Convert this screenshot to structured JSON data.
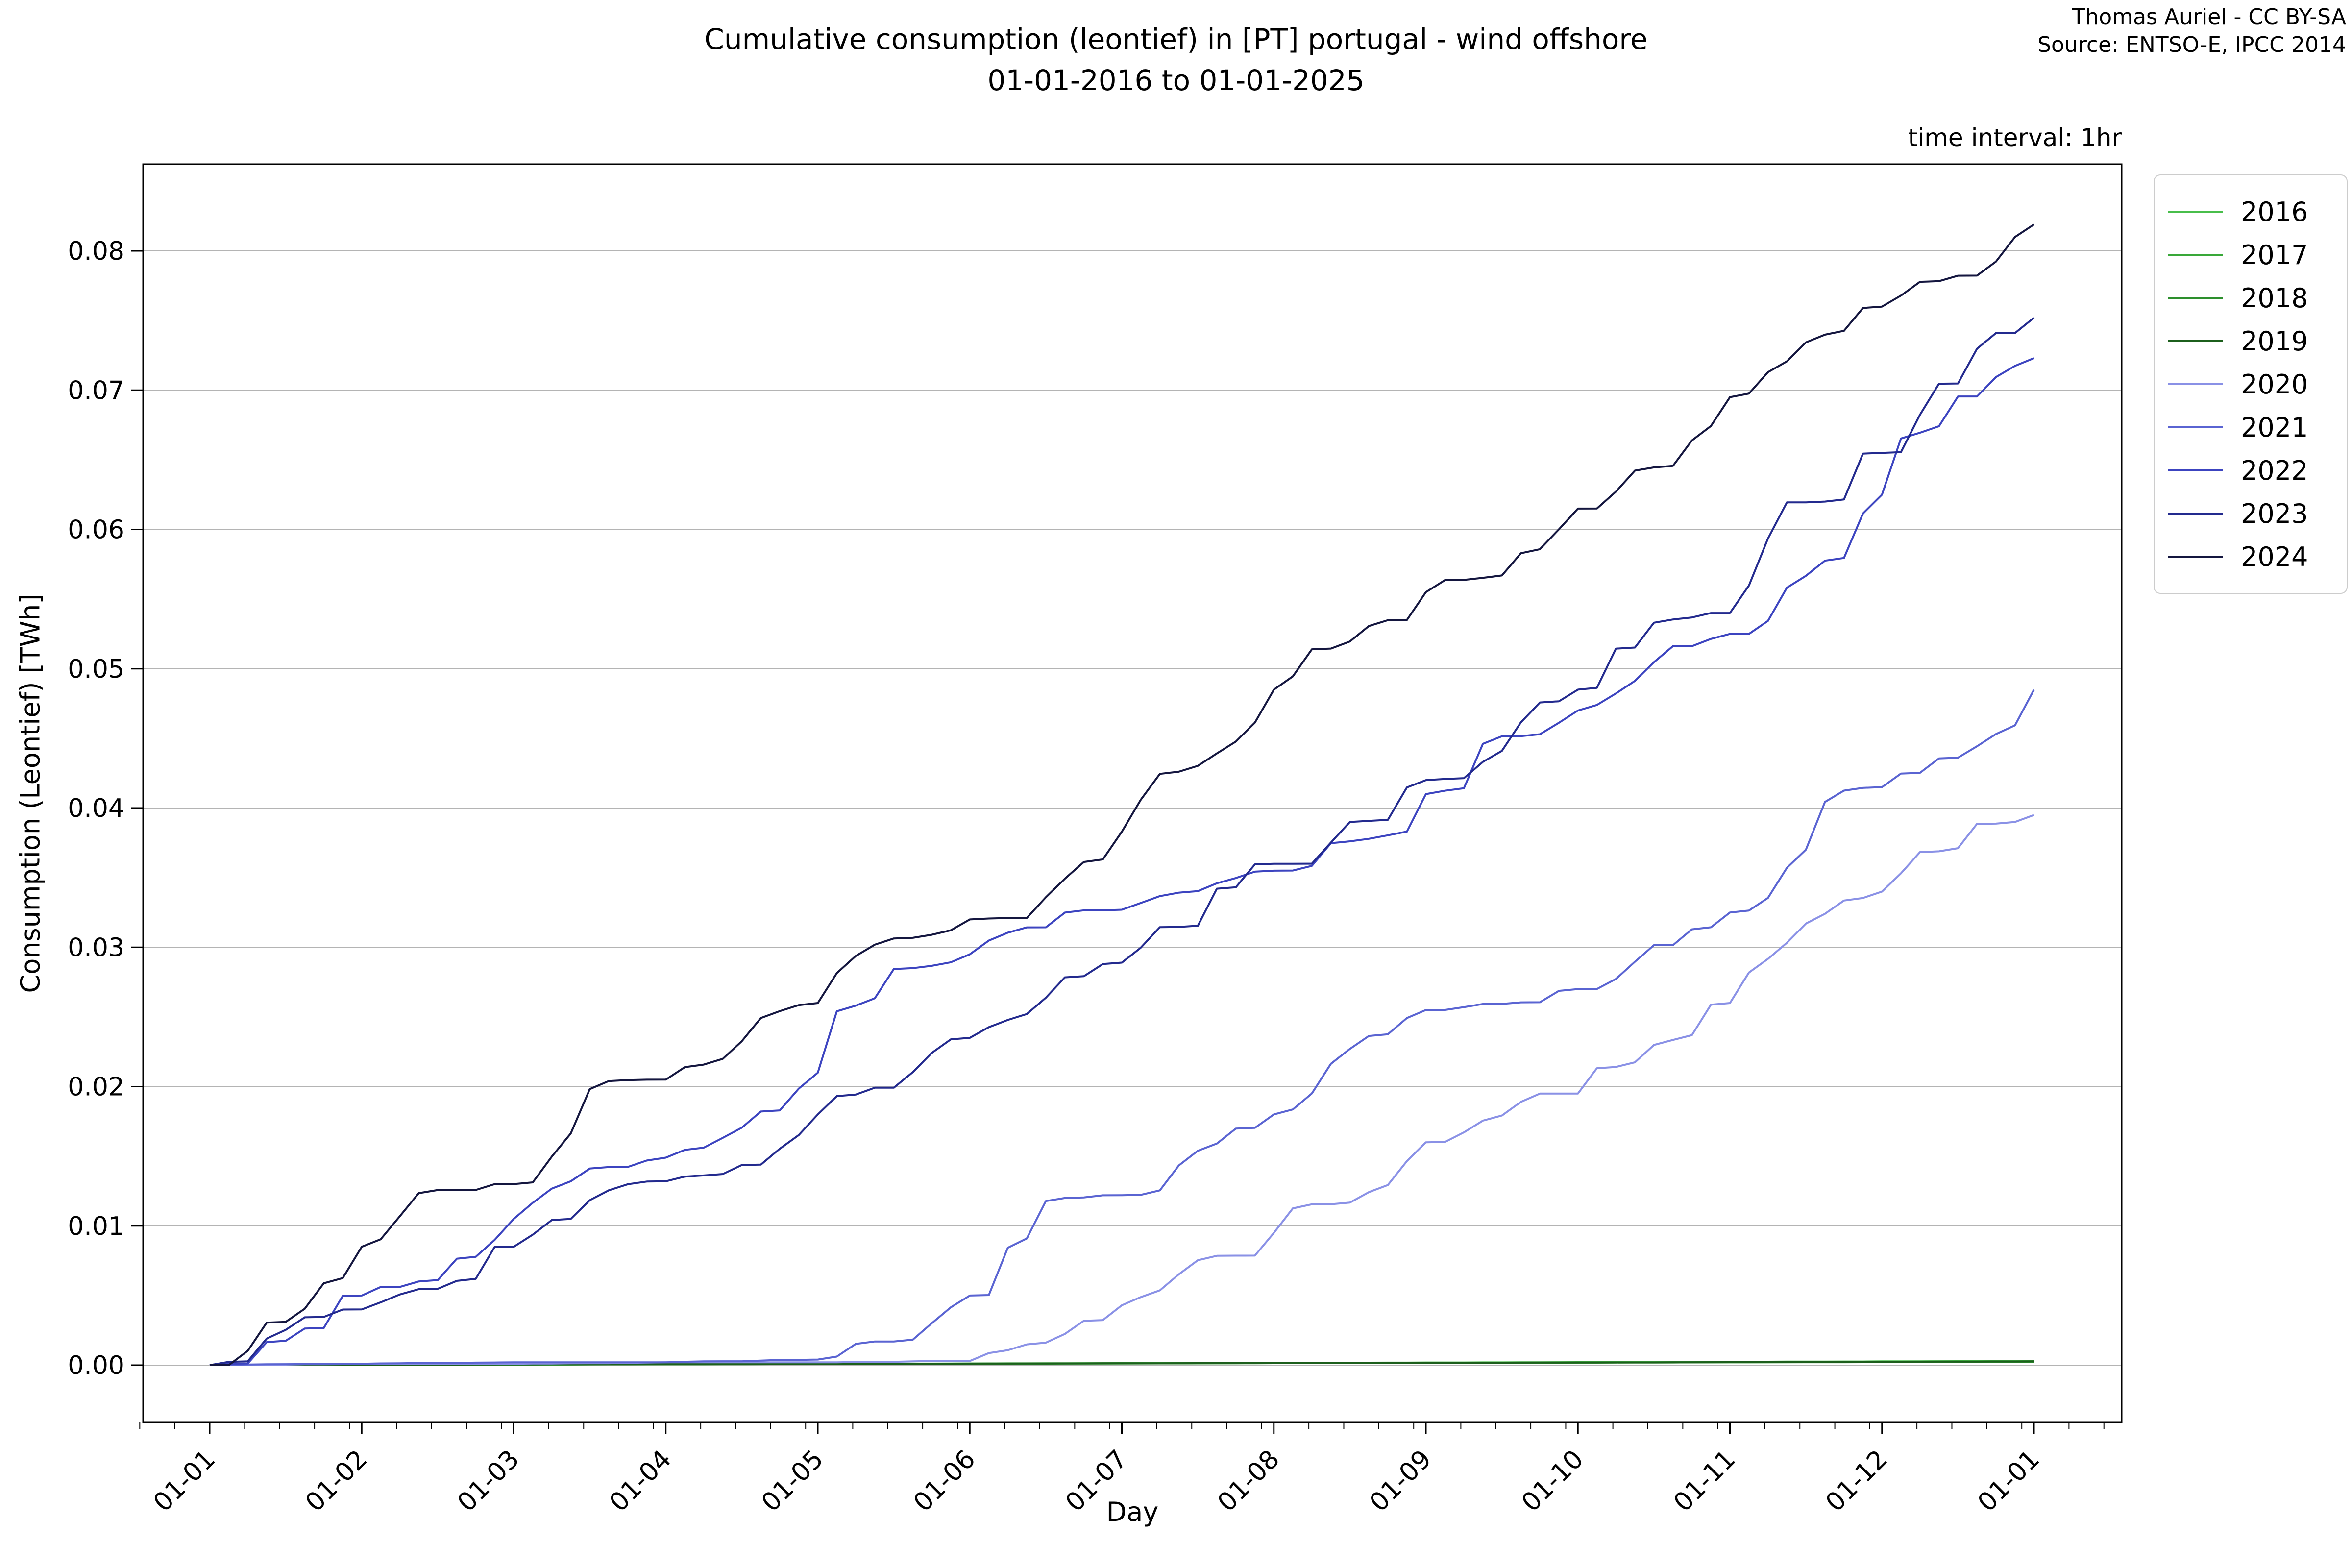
{
  "figure": {
    "title_line1": "Cumulative consumption (leontief) in [PT] portugal - wind offshore",
    "title_line2": "01-01-2016 to 01-01-2025",
    "attribution_line1": "Thomas Auriel - CC BY-SA",
    "attribution_line2": "Source: ENTSO-E, IPCC 2014",
    "note": "time interval: 1hr",
    "xlabel": "Day",
    "ylabel": "Consumption (Leontief) [TWh]"
  },
  "colors": {
    "background": "#ffffff",
    "gridline": "#b4b4b4",
    "spine": "#000000",
    "tick": "#000000",
    "legend_border": "#cccccc",
    "text": "#000000"
  },
  "chart_data": {
    "type": "line",
    "title": "Cumulative consumption (leontief) in [PT] portugal - wind offshore 01-01-2016 to 01-01-2025",
    "xlabel": "Day",
    "ylabel": "Consumption (Leontief) [TWh]",
    "x_tick_labels": [
      "01-01",
      "01-02",
      "01-03",
      "01-04",
      "01-05",
      "01-06",
      "01-07",
      "01-08",
      "01-09",
      "01-10",
      "01-11",
      "01-12",
      "01-01"
    ],
    "y_tick_labels": [
      "0.00",
      "0.01",
      "0.02",
      "0.03",
      "0.04",
      "0.05",
      "0.06",
      "0.07",
      "0.08"
    ],
    "y_ticks": [
      0.0,
      0.01,
      0.02,
      0.03,
      0.04,
      0.05,
      0.06,
      0.07,
      0.08
    ],
    "x_months": [
      0,
      1,
      2,
      3,
      4,
      5,
      6,
      7,
      8,
      9,
      10,
      11,
      12
    ],
    "ylim": [
      -0.0041,
      0.0862
    ],
    "xlim_months": [
      -0.63,
      12.58
    ],
    "grid": "horizontal gridlines only",
    "legend_position": "outside upper right",
    "units": "TWh",
    "series": [
      {
        "name": "2016",
        "color": "#48be4b",
        "values": [
          0,
          3e-05,
          5e-05,
          8e-05,
          0.0001,
          0.00012,
          0.00014,
          0.00016,
          0.00019,
          0.00021,
          0.00024,
          0.00027,
          0.0003
        ]
      },
      {
        "name": "2017",
        "color": "#39a839",
        "values": [
          0,
          2e-05,
          4e-05,
          6e-05,
          8e-05,
          0.0001,
          0.00012,
          0.00014,
          0.00016,
          0.00018,
          0.0002,
          0.00022,
          0.00025
        ]
      },
      {
        "name": "2018",
        "color": "#2d8f2d",
        "values": [
          0,
          2e-05,
          4e-05,
          6e-05,
          8e-05,
          0.0001,
          0.00012,
          0.00014,
          0.00016,
          0.00018,
          0.0002,
          0.00022,
          0.00024
        ]
      },
      {
        "name": "2019",
        "color": "#1c5f1c",
        "values": [
          0,
          3e-05,
          5e-05,
          7e-05,
          9e-05,
          0.00011,
          0.00013,
          0.00015,
          0.00017,
          0.00019,
          0.00021,
          0.00024,
          0.00027
        ]
      },
      {
        "name": "2020",
        "color": "#8a91e6",
        "values": [
          0,
          0.0001,
          0.0001,
          0.0002,
          0.0002,
          0.0003,
          0.0043,
          0.0095,
          0.016,
          0.0195,
          0.026,
          0.034,
          0.0395
        ]
      },
      {
        "name": "2021",
        "color": "#5a64d2",
        "values": [
          0,
          0.0001,
          0.0002,
          0.0002,
          0.0004,
          0.005,
          0.0122,
          0.018,
          0.0255,
          0.027,
          0.0325,
          0.0415,
          0.0485
        ]
      },
      {
        "name": "2022",
        "color": "#3c44c0",
        "values": [
          0,
          0.005,
          0.0105,
          0.0149,
          0.021,
          0.0295,
          0.0327,
          0.0355,
          0.041,
          0.047,
          0.0525,
          0.0625,
          0.0723
        ]
      },
      {
        "name": "2023",
        "color": "#232a8e",
        "values": [
          0,
          0.004,
          0.0085,
          0.0132,
          0.018,
          0.0235,
          0.0289,
          0.036,
          0.042,
          0.0485,
          0.054,
          0.0655,
          0.0752
        ]
      },
      {
        "name": "2024",
        "color": "#14163f",
        "values": [
          0,
          0.0085,
          0.013,
          0.0205,
          0.026,
          0.032,
          0.0383,
          0.0485,
          0.0555,
          0.0615,
          0.0695,
          0.076,
          0.0819
        ]
      }
    ]
  }
}
